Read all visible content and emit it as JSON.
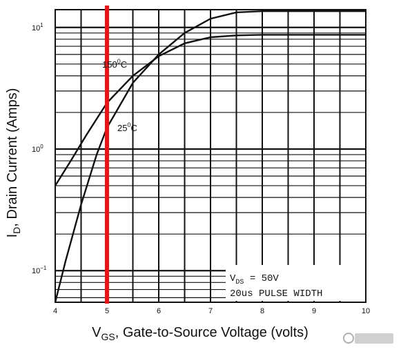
{
  "chart_data": {
    "type": "line",
    "title": "",
    "xlabel_main": "V",
    "xlabel_sub": "GS",
    "xlabel_rest": ", Gate-to-Source Voltage (volts)",
    "ylabel_main": "I",
    "ylabel_sub": "D",
    "ylabel_rest": ", Drain Current (Amps)",
    "x_ticks": [
      "4",
      "5",
      "6",
      "7",
      "8",
      "9",
      "10"
    ],
    "y_tick_base": "10",
    "y_ticks": [
      {
        "value": 10,
        "exp": "1"
      },
      {
        "value": 1,
        "exp": "0"
      },
      {
        "value": 0.1,
        "exp": "−1"
      }
    ],
    "xlim": [
      4,
      10
    ],
    "ylim": [
      0.055,
      14
    ],
    "y_scale": "log",
    "grid": true,
    "series": [
      {
        "name": "150°C",
        "label_text": "150",
        "label_deg": "0",
        "label_unit": "C",
        "x": [
          4.0,
          4.3,
          4.6,
          5.0,
          5.5,
          6.0,
          6.5,
          7.0,
          7.5,
          8.0,
          9.0,
          10.0
        ],
        "y": [
          0.5,
          0.8,
          1.3,
          2.4,
          4.0,
          5.8,
          7.4,
          8.3,
          8.6,
          8.7,
          8.7,
          8.7
        ]
      },
      {
        "name": "25°C",
        "label_text": "25",
        "label_deg": "0",
        "label_unit": "C",
        "x": [
          4.0,
          4.2,
          4.5,
          4.8,
          5.0,
          5.5,
          6.0,
          6.5,
          7.0,
          7.5,
          8.0,
          9.0,
          10.0
        ],
        "y": [
          0.055,
          0.12,
          0.35,
          0.9,
          1.5,
          3.5,
          6.0,
          9.0,
          11.8,
          13.3,
          13.6,
          13.6,
          13.6
        ]
      }
    ],
    "marker_x": 5,
    "marker_color": "#ee1111",
    "annotations": {
      "vds_main": "V",
      "vds_sub": "DS",
      "vds_rest": " = 50V",
      "pulse": "20us PULSE WIDTH"
    }
  }
}
